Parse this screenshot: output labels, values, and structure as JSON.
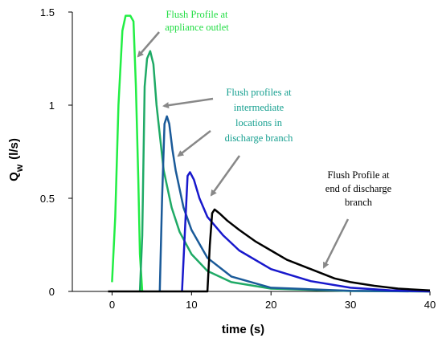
{
  "chart_data": {
    "type": "line",
    "title": "",
    "xlabel": "time (s)",
    "ylabel_main": "Q",
    "ylabel_sub": "w",
    "ylabel_unit": "(l/s)",
    "xlim": [
      -5,
      40
    ],
    "ylim": [
      0,
      1.5
    ],
    "xticks": [
      0,
      10,
      20,
      30,
      40
    ],
    "yticks": [
      {
        "value": 0,
        "label": "0"
      },
      {
        "value": 0.5,
        "label": "0.5"
      },
      {
        "value": 1,
        "label": "1"
      },
      {
        "value": 1.5,
        "label": "1.5"
      }
    ],
    "grid": false,
    "series": [
      {
        "color": "#22ee44",
        "x": [
          0,
          0.4,
          0.8,
          1.3,
          1.7,
          2.3,
          2.7,
          3.0,
          3.3,
          3.5,
          3.8
        ],
        "y": [
          0.05,
          0.4,
          1.0,
          1.4,
          1.48,
          1.48,
          1.45,
          1.1,
          0.6,
          0.2,
          0
        ]
      },
      {
        "color": "#1faa66",
        "x": [
          3.5,
          3.8,
          4.1,
          4.4,
          4.8,
          5.2,
          5.6,
          6.5,
          7.5,
          8.5,
          10,
          12,
          15,
          20,
          30,
          40
        ],
        "y": [
          0,
          0.3,
          1.1,
          1.25,
          1.29,
          1.22,
          1.0,
          0.65,
          0.45,
          0.32,
          0.2,
          0.11,
          0.05,
          0.015,
          0.002,
          0
        ]
      },
      {
        "color": "#1a5a99",
        "x": [
          6.0,
          6.3,
          6.6,
          6.9,
          7.2,
          7.6,
          8.0,
          9,
          10,
          12,
          15,
          20,
          30,
          40
        ],
        "y": [
          0,
          0.5,
          0.9,
          0.94,
          0.9,
          0.76,
          0.65,
          0.45,
          0.33,
          0.18,
          0.08,
          0.02,
          0.003,
          0
        ]
      },
      {
        "color": "#1818cc",
        "x": [
          8.8,
          9.2,
          9.5,
          9.8,
          10.3,
          11,
          12,
          14,
          16,
          20,
          25,
          30,
          35,
          40
        ],
        "y": [
          0,
          0.35,
          0.62,
          0.64,
          0.6,
          0.5,
          0.4,
          0.3,
          0.22,
          0.12,
          0.055,
          0.02,
          0.006,
          0
        ]
      },
      {
        "color": "#000000",
        "x": [
          -0.5,
          12,
          12.3,
          12.6,
          12.9,
          13.5,
          14.5,
          16,
          18,
          20,
          22,
          25,
          28,
          30,
          33,
          36,
          40
        ],
        "y": [
          0,
          0,
          0.25,
          0.42,
          0.44,
          0.42,
          0.38,
          0.33,
          0.27,
          0.22,
          0.17,
          0.12,
          0.07,
          0.05,
          0.03,
          0.015,
          0.005
        ]
      }
    ],
    "annotations": [
      {
        "id": "outlet",
        "lines": [
          "Flush Profile at",
          "appliance outlet"
        ],
        "color": "#22dd44"
      },
      {
        "id": "intermediate",
        "lines": [
          "Flush profiles at",
          "intermediate",
          "locations in",
          "discharge branch"
        ],
        "color": "#17a090"
      },
      {
        "id": "end",
        "lines": [
          "Flush Profile at",
          "end of discharge",
          "branch"
        ],
        "color": "#000000"
      }
    ],
    "arrow_color": "#888888"
  }
}
